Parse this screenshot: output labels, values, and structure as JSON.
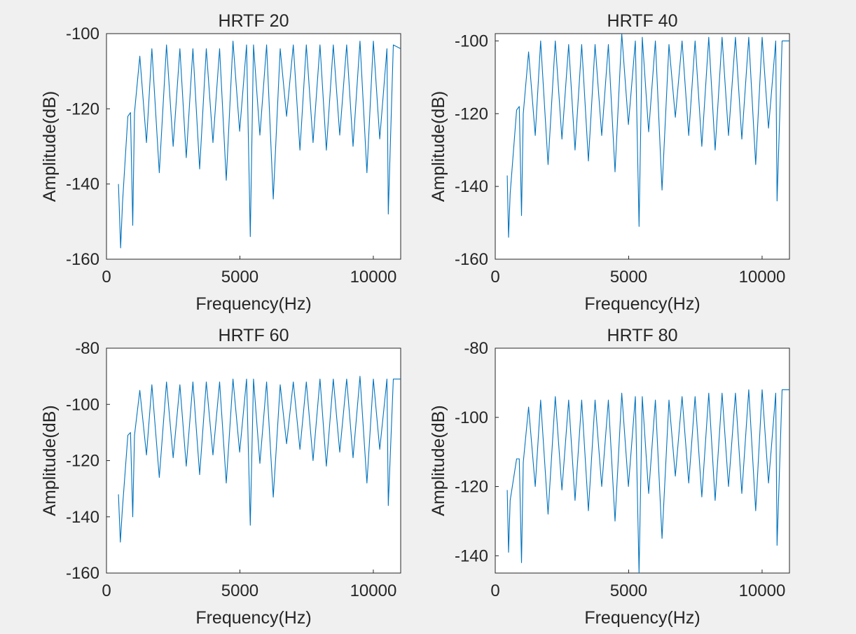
{
  "figure": {
    "background": "#f0f0f0",
    "line_color": "#0072bd"
  },
  "chart_data": [
    {
      "type": "line",
      "title": "HRTF 20",
      "xlabel": "Frequency(Hz)",
      "ylabel": "Amplitude(dB)",
      "xlim": [
        0,
        11025
      ],
      "ylim": [
        -160,
        -100
      ],
      "xticks": [
        0,
        5000,
        10000
      ],
      "yticks": [
        -160,
        -140,
        -120,
        -100
      ],
      "grid": false,
      "series": [
        {
          "x": [
            450,
            530,
            600,
            800,
            900,
            985,
            1050,
            1250,
            1500,
            1700,
            1980,
            2250,
            2500,
            2750,
            2990,
            3240,
            3490,
            3740,
            3990,
            4240,
            4490,
            4740,
            4990,
            5250,
            5390,
            5510,
            5750,
            6000,
            6250,
            6510,
            6750,
            7000,
            7250,
            7490,
            7740,
            8000,
            8240,
            8500,
            8740,
            9000,
            9240,
            9500,
            9760,
            10000,
            10240,
            10510,
            10560,
            10750,
            11025
          ],
          "y": [
            -140,
            -157,
            -145,
            -122,
            -121,
            -151,
            -121,
            -106,
            -129,
            -104,
            -137,
            -103,
            -130,
            -104,
            -133,
            -104,
            -136,
            -104,
            -129,
            -104,
            -139,
            -102,
            -126,
            -103,
            -154,
            -103,
            -127,
            -103,
            -144,
            -104,
            -122,
            -103,
            -131,
            -103,
            -129,
            -103,
            -131,
            -103,
            -127,
            -103,
            -130,
            -102,
            -137,
            -102,
            -128,
            -104,
            -148,
            -103,
            -104
          ]
        }
      ]
    },
    {
      "type": "line",
      "title": "HRTF 40",
      "xlabel": "Frequency(Hz)",
      "ylabel": "Amplitude(dB)",
      "xlim": [
        0,
        11025
      ],
      "ylim": [
        -160,
        -98
      ],
      "xticks": [
        0,
        5000,
        10000
      ],
      "yticks": [
        -160,
        -140,
        -120,
        -100
      ],
      "grid": false,
      "series": [
        {
          "x": [
            450,
            500,
            560,
            800,
            900,
            985,
            1050,
            1250,
            1500,
            1700,
            1980,
            2250,
            2500,
            2750,
            2990,
            3240,
            3490,
            3740,
            3990,
            4240,
            4490,
            4740,
            4990,
            5250,
            5390,
            5510,
            5750,
            6000,
            6250,
            6510,
            6750,
            7000,
            7250,
            7490,
            7740,
            8000,
            8240,
            8500,
            8740,
            9000,
            9240,
            9500,
            9760,
            10000,
            10240,
            10510,
            10560,
            10750,
            11025
          ],
          "y": [
            -137,
            -154,
            -142,
            -119,
            -118,
            -148,
            -120,
            -103,
            -126,
            -100,
            -134,
            -100,
            -127,
            -101,
            -130,
            -101,
            -133,
            -101,
            -126,
            -101,
            -136,
            -98,
            -123,
            -100,
            -151,
            -99,
            -125,
            -100,
            -141,
            -101,
            -121,
            -100,
            -126,
            -100,
            -129,
            -99,
            -130,
            -99,
            -126,
            -99,
            -127,
            -99,
            -134,
            -99,
            -124,
            -100,
            -144,
            -100,
            -100
          ]
        }
      ]
    },
    {
      "type": "line",
      "title": "HRTF 60",
      "xlabel": "Frequency(Hz)",
      "ylabel": "Amplitude(dB)",
      "xlim": [
        0,
        11025
      ],
      "ylim": [
        -160,
        -80
      ],
      "xticks": [
        0,
        5000,
        10000
      ],
      "yticks": [
        -160,
        -140,
        -120,
        -100,
        -80
      ],
      "grid": false,
      "series": [
        {
          "x": [
            450,
            520,
            590,
            800,
            900,
            985,
            1050,
            1250,
            1500,
            1700,
            1980,
            2250,
            2500,
            2750,
            2990,
            3240,
            3490,
            3740,
            3990,
            4240,
            4490,
            4740,
            4990,
            5250,
            5390,
            5510,
            5750,
            6000,
            6250,
            6510,
            6750,
            7000,
            7250,
            7490,
            7740,
            8000,
            8240,
            8500,
            8740,
            9000,
            9240,
            9500,
            9760,
            10000,
            10240,
            10510,
            10560,
            10750,
            11025
          ],
          "y": [
            -132,
            -149,
            -138,
            -111,
            -110,
            -140,
            -111,
            -95,
            -118,
            -93,
            -126,
            -92,
            -119,
            -93,
            -122,
            -92,
            -125,
            -92,
            -118,
            -92,
            -128,
            -91,
            -117,
            -91,
            -143,
            -91,
            -121,
            -92,
            -133,
            -93,
            -114,
            -92,
            -116,
            -92,
            -120,
            -91,
            -122,
            -91,
            -117,
            -91,
            -119,
            -90,
            -128,
            -91,
            -116,
            -91,
            -136,
            -91,
            -91
          ]
        }
      ]
    },
    {
      "type": "line",
      "title": "HRTF 80",
      "xlabel": "Frequency(Hz)",
      "ylabel": "Amplitude(dB)",
      "xlim": [
        0,
        11025
      ],
      "ylim": [
        -145,
        -80
      ],
      "xticks": [
        0,
        5000,
        10000
      ],
      "yticks": [
        -140,
        -120,
        -100,
        -80
      ],
      "grid": false,
      "series": [
        {
          "x": [
            450,
            500,
            560,
            800,
            900,
            985,
            1050,
            1250,
            1500,
            1700,
            1980,
            2250,
            2500,
            2750,
            2990,
            3240,
            3490,
            3740,
            3990,
            4240,
            4490,
            4740,
            4990,
            5250,
            5390,
            5510,
            5750,
            6000,
            6250,
            6510,
            6750,
            7000,
            7250,
            7490,
            7740,
            8000,
            8240,
            8500,
            8740,
            9000,
            9240,
            9500,
            9760,
            10000,
            10240,
            10510,
            10560,
            10750,
            11025
          ],
          "y": [
            -121,
            -139,
            -124,
            -112,
            -112,
            -142,
            -113,
            -97,
            -120,
            -95,
            -128,
            -94,
            -121,
            -95,
            -124,
            -95,
            -127,
            -95,
            -120,
            -95,
            -130,
            -93,
            -120,
            -94,
            -145,
            -94,
            -122,
            -95,
            -135,
            -95,
            -117,
            -94,
            -119,
            -94,
            -123,
            -93,
            -124,
            -93,
            -120,
            -93,
            -122,
            -92,
            -127,
            -92,
            -119,
            -93,
            -137,
            -92,
            -92
          ]
        }
      ]
    }
  ]
}
